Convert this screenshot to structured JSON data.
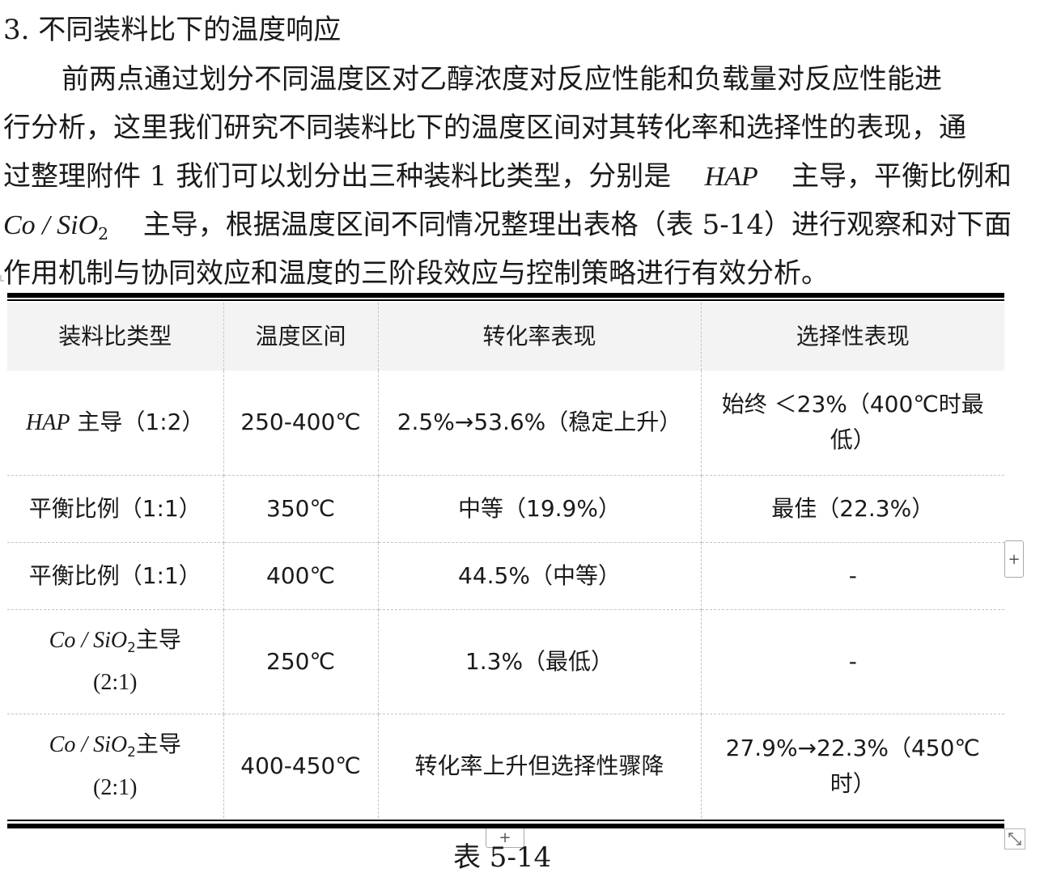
{
  "heading": "3. 不同装料比下的温度响应",
  "paragraph": {
    "line1": "前两点通过划分不同温度区对乙醇浓度对反应性能和负载量对反应性能进",
    "line2": "行分析，这里我们研究不同装料比下的温度区间对其转化率和选择性的表现，通",
    "line3a": "过整理附件 1 我们可以划分出三种装料比类型，分别是",
    "hap": "HAP",
    "line3b": "主导，平衡比例和",
    "co_si": "Co / SiO",
    "sub2": "2",
    "line4": "主导，根据温度区间不同情况整理出表格（表 5-14）进行观察和对下面",
    "line5": "作用机制与协同效应和温度的三阶段效应与控制策略进行有效分析。"
  },
  "table": {
    "headers": [
      "装料比类型",
      "温度区间",
      "转化率表现",
      "选择性表现"
    ],
    "rows": [
      {
        "type_it": "HAP",
        "type_rest": " 主导（1:2）",
        "temp": "250-400℃",
        "conversion": "2.5%→53.6%（稳定上升）",
        "selectivity": "始终 ＜23%（400℃时最低）"
      },
      {
        "type": "平衡比例（1:1）",
        "temp": "350℃",
        "conversion": "中等（19.9%）",
        "selectivity": "最佳（22.3%）"
      },
      {
        "type": "平衡比例（1:1）",
        "temp": "400℃",
        "conversion": "44.5%（中等）",
        "selectivity": "-"
      },
      {
        "type_it": "Co / SiO",
        "type_sub": "2",
        "type_rest": "主导",
        "type_ratio": "(2:1)",
        "temp": "250℃",
        "conversion": "1.3%（最低）",
        "selectivity": "-"
      },
      {
        "type_it": "Co / SiO",
        "type_sub": "2",
        "type_rest": "主导",
        "type_ratio": "(2:1)",
        "temp": "400-450℃",
        "conversion": "转化率上升但选择性骤降",
        "selectivity": "27.9%→22.3%（450℃时）"
      }
    ]
  },
  "caption": "表 5-14",
  "controls": {
    "add_icon": "+"
  },
  "icons": [
    "add-column-icon",
    "add-row-icon",
    "resize-handle-icon",
    "paragraph-anchor-icon"
  ]
}
